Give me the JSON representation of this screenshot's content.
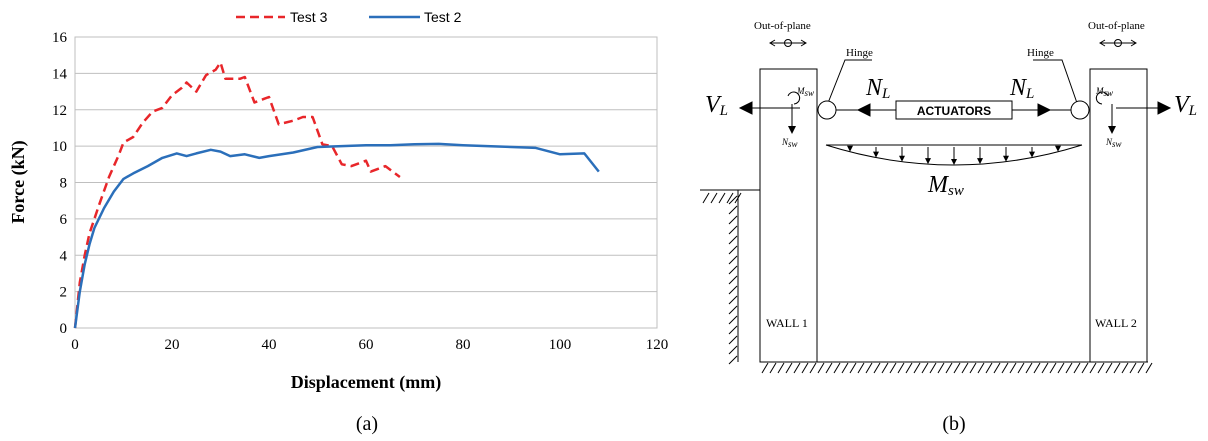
{
  "chart_data": {
    "type": "line",
    "title": "",
    "xlabel": "Displacement (mm)",
    "ylabel": "Force (kN)",
    "xlim": [
      0,
      120
    ],
    "ylim": [
      0,
      16
    ],
    "xticks": [
      0,
      20,
      40,
      60,
      80,
      100,
      120
    ],
    "yticks": [
      0,
      2,
      4,
      6,
      8,
      10,
      12,
      14,
      16
    ],
    "grid": "horizontal",
    "legend_position": "top",
    "caption": "(a)",
    "series": [
      {
        "name": "Test 3",
        "color": "#e8262a",
        "dash": "dashed",
        "points": [
          [
            0,
            0
          ],
          [
            1,
            2.5
          ],
          [
            2,
            4.0
          ],
          [
            3,
            5.2
          ],
          [
            5,
            6.8
          ],
          [
            7,
            8.3
          ],
          [
            9,
            9.5
          ],
          [
            10,
            10.2
          ],
          [
            12,
            10.5
          ],
          [
            14,
            11.3
          ],
          [
            16,
            11.9
          ],
          [
            18,
            12.1
          ],
          [
            20,
            12.8
          ],
          [
            22,
            13.2
          ],
          [
            23,
            13.5
          ],
          [
            25,
            13.0
          ],
          [
            27,
            13.9
          ],
          [
            29,
            14.2
          ],
          [
            30,
            14.6
          ],
          [
            31,
            13.7
          ],
          [
            34,
            13.7
          ],
          [
            35,
            13.8
          ],
          [
            37,
            12.4
          ],
          [
            39,
            12.6
          ],
          [
            40,
            12.7
          ],
          [
            42,
            11.2
          ],
          [
            45,
            11.4
          ],
          [
            47,
            11.6
          ],
          [
            49,
            11.6
          ],
          [
            51,
            10.1
          ],
          [
            53,
            10.0
          ],
          [
            55,
            9.0
          ],
          [
            57,
            8.9
          ],
          [
            59,
            9.1
          ],
          [
            60,
            9.2
          ],
          [
            61,
            8.6
          ],
          [
            64,
            8.9
          ],
          [
            67,
            8.3
          ]
        ]
      },
      {
        "name": "Test 2",
        "color": "#2b6fba",
        "dash": "solid",
        "points": [
          [
            0,
            0
          ],
          [
            1,
            2.0
          ],
          [
            2,
            3.5
          ],
          [
            3,
            4.6
          ],
          [
            4,
            5.5
          ],
          [
            6,
            6.6
          ],
          [
            8,
            7.5
          ],
          [
            10,
            8.2
          ],
          [
            12,
            8.5
          ],
          [
            15,
            8.9
          ],
          [
            18,
            9.35
          ],
          [
            21,
            9.6
          ],
          [
            23,
            9.45
          ],
          [
            25,
            9.6
          ],
          [
            28,
            9.8
          ],
          [
            30,
            9.7
          ],
          [
            32,
            9.45
          ],
          [
            35,
            9.55
          ],
          [
            38,
            9.35
          ],
          [
            40,
            9.45
          ],
          [
            45,
            9.65
          ],
          [
            50,
            9.95
          ],
          [
            55,
            10.0
          ],
          [
            60,
            10.05
          ],
          [
            65,
            10.05
          ],
          [
            70,
            10.1
          ],
          [
            75,
            10.12
          ],
          [
            80,
            10.05
          ],
          [
            85,
            10.0
          ],
          [
            90,
            9.95
          ],
          [
            95,
            9.9
          ],
          [
            100,
            9.55
          ],
          [
            105,
            9.6
          ],
          [
            108,
            8.6
          ]
        ]
      }
    ]
  },
  "diagram": {
    "caption": "(b)",
    "out_of_plane_left": "Out-of-plane",
    "out_of_plane_right": "Out-of-plane",
    "hinge_left": "Hinge",
    "hinge_right": "Hinge",
    "actuators": "ACTUATORS",
    "v_left_main": "V",
    "v_left_sub": "L",
    "v_right_main": "V",
    "v_right_sub": "L",
    "n_left_main": "N",
    "n_left_sub": "L",
    "n_right_main": "N",
    "n_right_sub": "L",
    "m_sw_main": "M",
    "m_sw_sub": "sw",
    "wall_m_left": "M",
    "wall_m_left_sub": "sw",
    "wall_n_left": "N",
    "wall_n_left_sub": "sw",
    "wall_m_right": "M",
    "wall_m_right_sub": "sw",
    "wall_n_right": "N",
    "wall_n_right_sub": "sw",
    "wall1_label": "WALL 1",
    "wall2_label": "WALL 2"
  }
}
